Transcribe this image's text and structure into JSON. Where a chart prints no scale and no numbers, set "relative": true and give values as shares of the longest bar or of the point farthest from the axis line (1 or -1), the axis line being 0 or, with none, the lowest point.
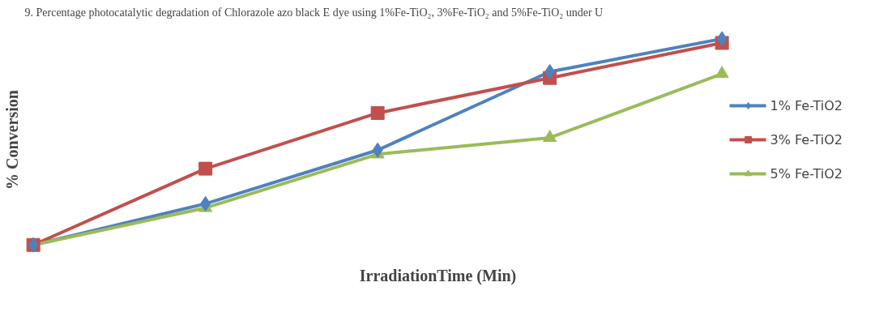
{
  "chart_data": {
    "type": "line",
    "title": "9. Percentage photocatalytic degradation of Chlorazole azo black E dye using 1%Fe-TiO₂, 3%Fe-TiO₂ and 5%Fe-TiO₂ under U",
    "xlabel": "IrradiationTime (Min)",
    "ylabel": "% Conversion",
    "relative": true,
    "legend": "right",
    "categories": [
      null,
      null,
      null,
      null,
      null
    ],
    "series": [
      {
        "name": "1% Fe-TiO2",
        "color": "#4f81bd",
        "marker": "diamond",
        "values": [
          0,
          0.2,
          0.46,
          0.84,
          1
        ]
      },
      {
        "name": "3% Fe-TiO2",
        "color": "#c0504d",
        "marker": "square",
        "values": [
          0,
          0.37,
          0.64,
          0.81,
          0.98
        ]
      },
      {
        "name": "5% Fe-TiO2",
        "color": "#9bbb59",
        "marker": "triangle",
        "values": [
          0,
          0.18,
          0.44,
          0.52,
          0.83
        ]
      }
    ]
  }
}
